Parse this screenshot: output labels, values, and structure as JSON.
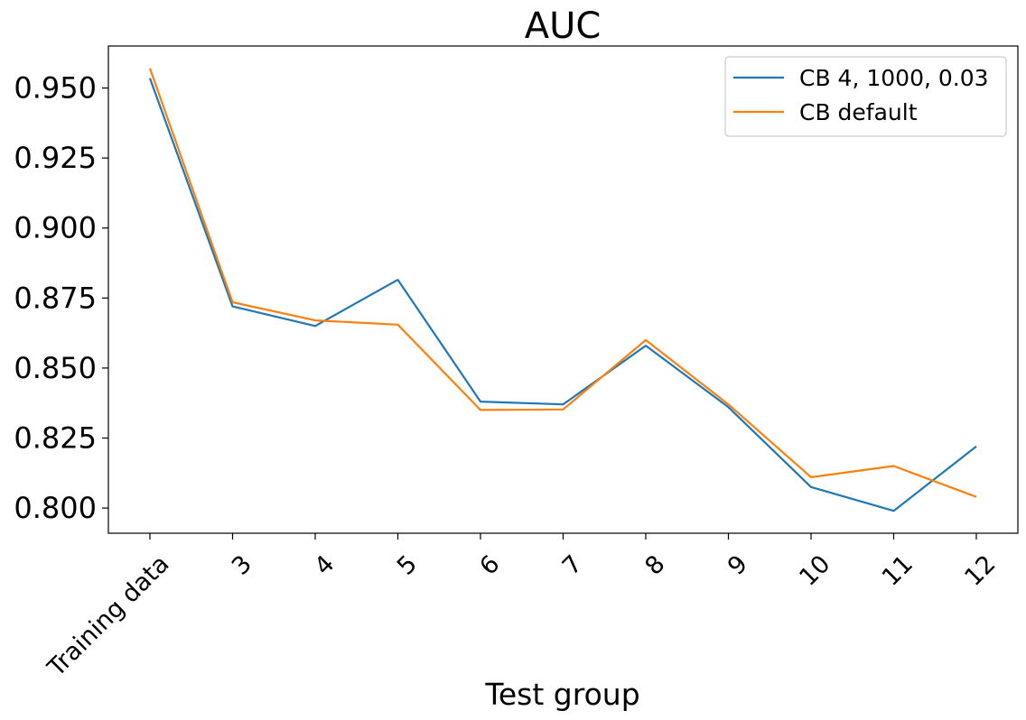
{
  "chart_data": {
    "type": "line",
    "title": "AUC",
    "xlabel": "Test group",
    "ylabel": "",
    "categories": [
      "Training data",
      "3",
      "4",
      "5",
      "6",
      "7",
      "8",
      "9",
      "10",
      "11",
      "12"
    ],
    "ylim": [
      0.791,
      0.965
    ],
    "yticks": [
      "0.800",
      "0.825",
      "0.850",
      "0.875",
      "0.900",
      "0.925",
      "0.950"
    ],
    "grid": false,
    "legend_position": "top-right",
    "series": [
      {
        "name": "CB 4, 1000, 0.03",
        "color": "#1f77b4",
        "values": [
          0.9535,
          0.872,
          0.865,
          0.8815,
          0.838,
          0.837,
          0.858,
          0.836,
          0.8075,
          0.799,
          0.822
        ]
      },
      {
        "name": "CB default",
        "color": "#ff7f0e",
        "values": [
          0.957,
          0.8735,
          0.867,
          0.8655,
          0.835,
          0.8352,
          0.86,
          0.837,
          0.811,
          0.815,
          0.804
        ]
      }
    ]
  }
}
